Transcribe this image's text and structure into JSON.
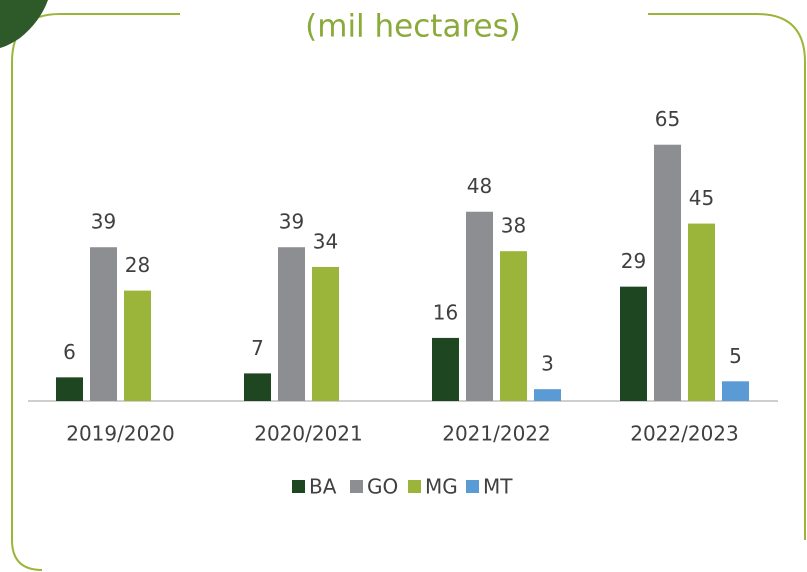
{
  "chart_data": {
    "type": "bar",
    "title": "(mil hectares)",
    "categories": [
      "2019/2020",
      "2020/2021",
      "2021/2022",
      "2022/2023"
    ],
    "series": [
      {
        "name": "BA",
        "color": "#1e4620",
        "values": [
          6,
          7,
          16,
          29
        ]
      },
      {
        "name": "GO",
        "color": "#8c8e91",
        "values": [
          39,
          39,
          48,
          65
        ]
      },
      {
        "name": "MG",
        "color": "#9bb53a",
        "values": [
          28,
          34,
          38,
          45
        ]
      },
      {
        "name": "MT",
        "color": "#5b9bd5",
        "values": [
          null,
          null,
          3,
          5
        ]
      }
    ],
    "ylim": [
      0,
      70
    ],
    "legend": "bottom"
  }
}
